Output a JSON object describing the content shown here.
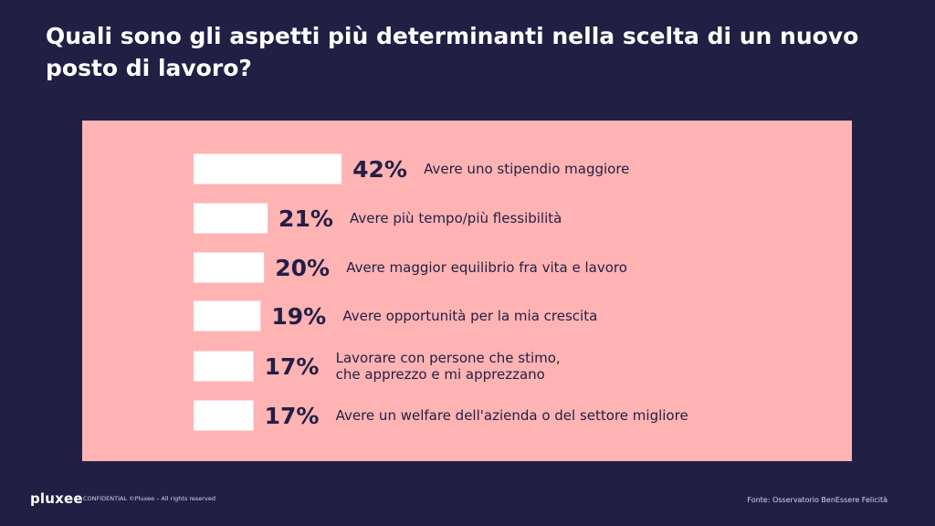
{
  "title": "Quali sono gli aspetti più determinanti nella scelta di un nuovo posto di lavoro?",
  "footer": {
    "logo": "pluxee",
    "confidential": "CONFIDENTIAL ©Pluxee – All rights reserved",
    "source": "Fonte: Osservatorio BenEssere Felicità"
  },
  "colors": {
    "background": "#221f45",
    "panel": "#ffb3b3",
    "bar": "#ffffff",
    "text_dark": "#221f45"
  },
  "chart_data": {
    "type": "bar",
    "orientation": "horizontal",
    "title": "",
    "xlabel": "",
    "ylabel": "",
    "categories": [
      [
        "Avere uno stipendio maggiore"
      ],
      [
        "Avere più tempo/più flessibilità"
      ],
      [
        "Avere maggior equilibrio fra vita e lavoro"
      ],
      [
        "Avere opportunità per la mia crescita"
      ],
      [
        "Lavorare con persone che stimo,",
        "che apprezzo e mi apprezzano"
      ],
      [
        "Avere un welfare dell'azienda o del settore migliore"
      ]
    ],
    "values": [
      42,
      21,
      20,
      19,
      17,
      17
    ],
    "value_labels": [
      "42%",
      "21%",
      "20%",
      "19%",
      "17%",
      "17%"
    ],
    "unit": "%",
    "grid": false,
    "legend": "none"
  }
}
